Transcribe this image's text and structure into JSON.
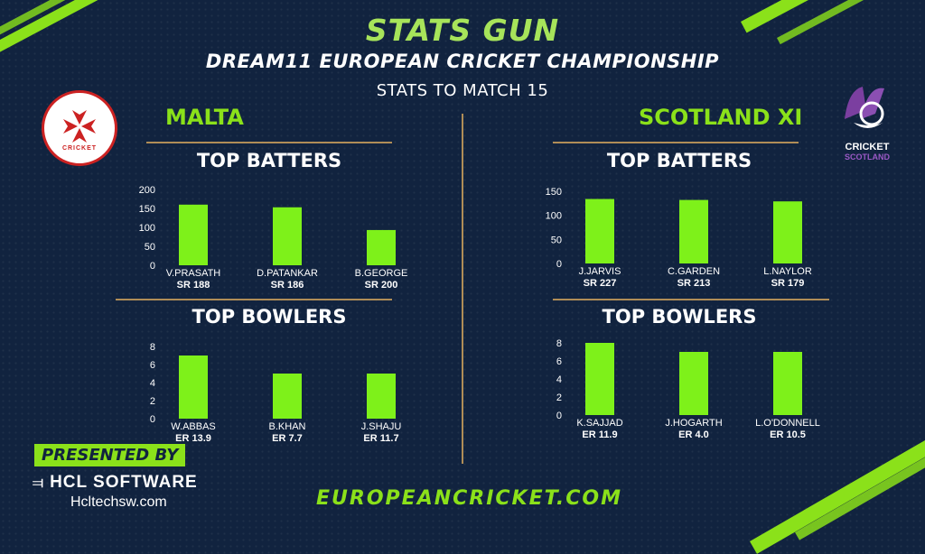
{
  "header": {
    "brand": "STATS GUN",
    "event": "DREAM11 EUROPEAN CRICKET CHAMPIONSHIP",
    "subtitle": "STATS TO MATCH 15"
  },
  "teams": {
    "left": {
      "name": "MALTA",
      "logo_text": "CRICKET",
      "batters_title": "TOP BATTERS",
      "bowlers_title": "TOP BOWLERS"
    },
    "right": {
      "name": "SCOTLAND XI",
      "logo_text_1": "CRICKET",
      "logo_text_2": "SCOTLAND",
      "batters_title": "TOP BATTERS",
      "bowlers_title": "TOP BOWLERS"
    }
  },
  "footer": {
    "presented_by": "PRESENTED BY",
    "sponsor": "HCL SOFTWARE",
    "sponsor_url": "Hcltechsw.com",
    "website": "EUROPEANCRICKET.COM"
  },
  "colors": {
    "bar": "#7ef11a",
    "accent": "#8be11a",
    "divider": "#b08d57",
    "background": "#11233f"
  },
  "chart_data": [
    {
      "type": "bar",
      "title": "TOP BATTERS",
      "team": "MALTA",
      "categories": [
        "V.PRASATH",
        "D.PATANKAR",
        "B.GEORGE"
      ],
      "sublabels": [
        "SR 188",
        "SR 186",
        "SR 200"
      ],
      "values": [
        160,
        153,
        93
      ],
      "ylim": [
        0,
        200
      ],
      "yticks": [
        0,
        50,
        100,
        150,
        200
      ],
      "grid": false
    },
    {
      "type": "bar",
      "title": "TOP BOWLERS",
      "team": "MALTA",
      "categories": [
        "W.ABBAS",
        "B.KHAN",
        "J.SHAJU"
      ],
      "sublabels": [
        "ER 13.9",
        "ER 7.7",
        "ER 11.7"
      ],
      "values": [
        7,
        5,
        5
      ],
      "ylim": [
        0,
        8
      ],
      "yticks": [
        0,
        2,
        4,
        6,
        8
      ],
      "grid": false
    },
    {
      "type": "bar",
      "title": "TOP BATTERS",
      "team": "SCOTLAND XI",
      "categories": [
        "J.JARVIS",
        "C.GARDEN",
        "L.NAYLOR"
      ],
      "sublabels": [
        "SR 227",
        "SR 213",
        "SR 179"
      ],
      "values": [
        134,
        132,
        129
      ],
      "ylim": [
        0,
        150
      ],
      "yticks": [
        0,
        50,
        100,
        150
      ],
      "grid": false
    },
    {
      "type": "bar",
      "title": "TOP BOWLERS",
      "team": "SCOTLAND XI",
      "categories": [
        "K.SAJJAD",
        "J.HOGARTH",
        "L.O'DONNELL"
      ],
      "sublabels": [
        "ER 11.9",
        "ER 4.0",
        "ER 10.5"
      ],
      "values": [
        8,
        7,
        7
      ],
      "ylim": [
        0,
        8
      ],
      "yticks": [
        0,
        2,
        4,
        6,
        8
      ],
      "grid": false
    }
  ]
}
